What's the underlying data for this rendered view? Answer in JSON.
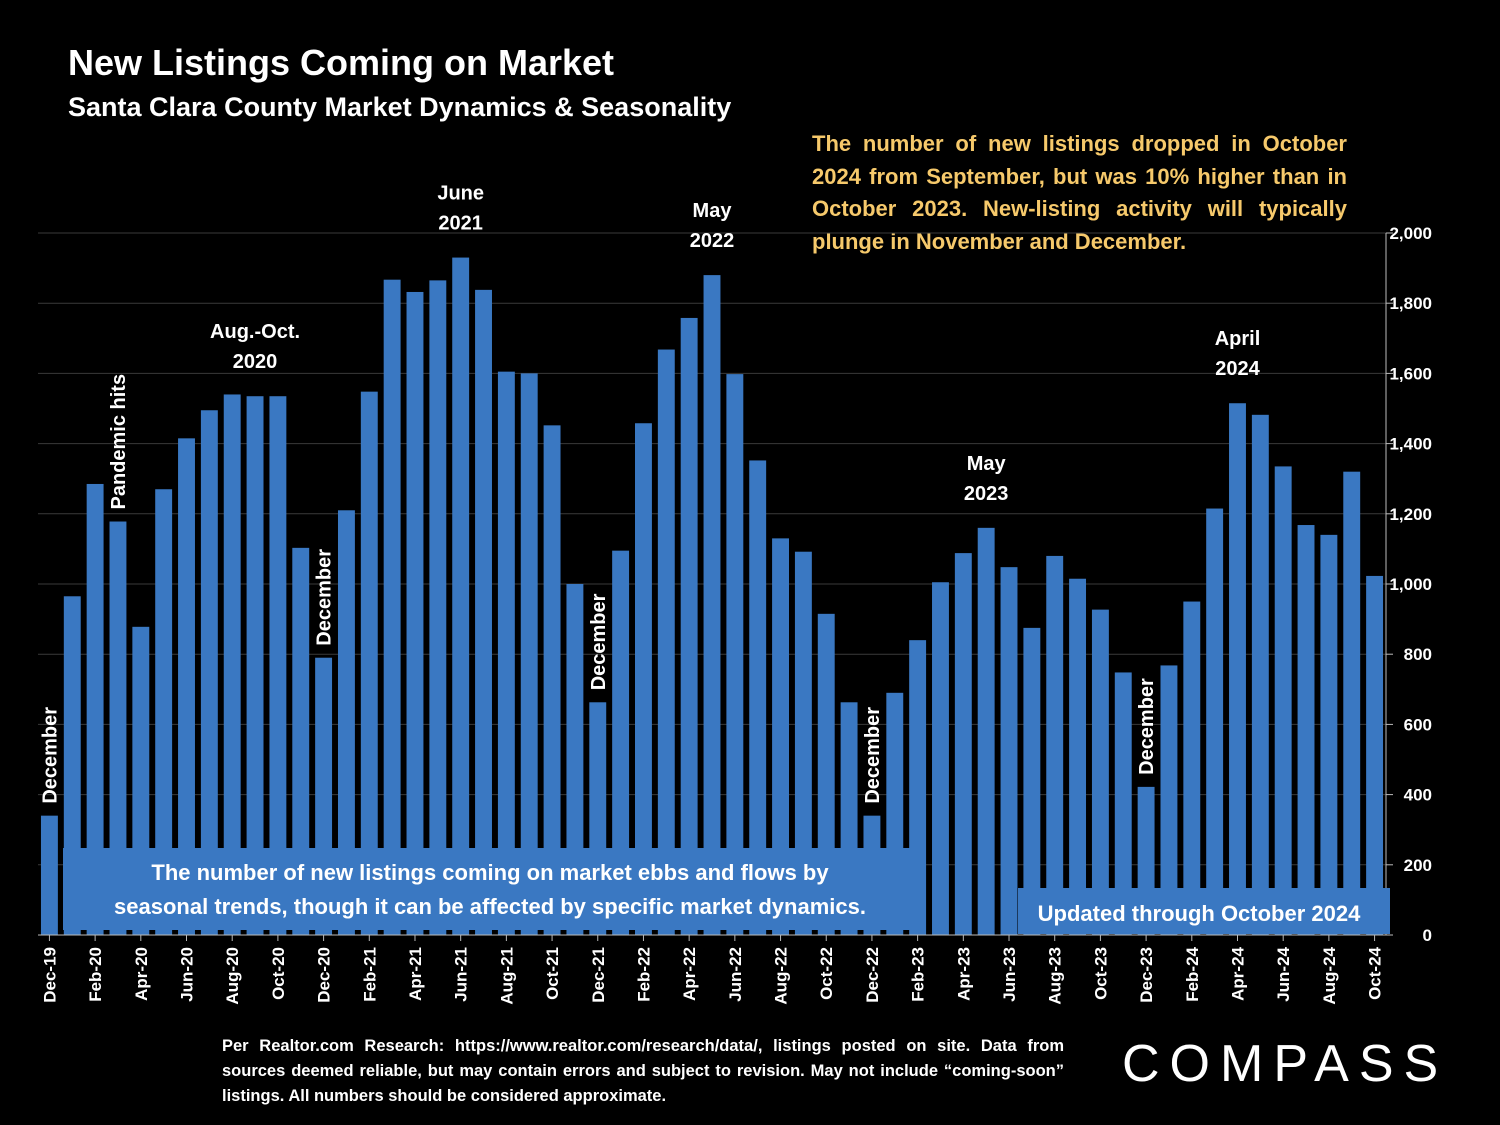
{
  "header": {
    "title": "New Listings Coming on Market",
    "subtitle": "Santa Clara County Market Dynamics & Seasonality"
  },
  "note": "The number of new listings dropped in October 2024 from September, but was 10% higher than in October 2023. New-listing activity will typically plunge in November and December.",
  "footer": "Per Realtor.com Research:   https://www.realtor.com/research/data/, listings posted on site. Data from sources deemed reliable, but may contain errors and subject to revision. May not include “coming-soon” listings. All numbers should be considered approximate.",
  "logo": "COMPASS",
  "colors": {
    "bar": "#3a78c2",
    "background": "#000000",
    "note": "#f6c96b",
    "grid": "#3a3a3a"
  },
  "chart_data": {
    "type": "bar",
    "title": "New Listings Coming on Market",
    "subtitle": "Santa Clara County Market Dynamics & Seasonality",
    "ylim": [
      0,
      2000
    ],
    "yticks": [
      0,
      200,
      400,
      600,
      800,
      1000,
      1200,
      1400,
      1600,
      1800,
      2000
    ],
    "grid": true,
    "categories": [
      "Dec-19",
      "Jan-20",
      "Feb-20",
      "Mar-20",
      "Apr-20",
      "May-20",
      "Jun-20",
      "Jul-20",
      "Aug-20",
      "Sep-20",
      "Oct-20",
      "Nov-20",
      "Dec-20",
      "Jan-21",
      "Feb-21",
      "Mar-21",
      "Apr-21",
      "May-21",
      "Jun-21",
      "Jul-21",
      "Aug-21",
      "Sep-21",
      "Oct-21",
      "Nov-21",
      "Dec-21",
      "Jan-22",
      "Feb-22",
      "Mar-22",
      "Apr-22",
      "May-22",
      "Jun-22",
      "Jul-22",
      "Aug-22",
      "Sep-22",
      "Oct-22",
      "Nov-22",
      "Dec-22",
      "Jan-23",
      "Feb-23",
      "Mar-23",
      "Apr-23",
      "May-23",
      "Jun-23",
      "Jul-23",
      "Aug-23",
      "Sep-23",
      "Oct-23",
      "Nov-23",
      "Dec-23",
      "Jan-24",
      "Feb-24",
      "Mar-24",
      "Apr-24",
      "May-24",
      "Jun-24",
      "Jul-24",
      "Aug-24",
      "Sep-24",
      "Oct-24"
    ],
    "xtick_labels": [
      "Dec-19",
      "",
      "Feb-20",
      "",
      "Apr-20",
      "",
      "Jun-20",
      "",
      "Aug-20",
      "",
      "Oct-20",
      "",
      "Dec-20",
      "",
      "Feb-21",
      "",
      "Apr-21",
      "",
      "Jun-21",
      "",
      "Aug-21",
      "",
      "Oct-21",
      "",
      "Dec-21",
      "",
      "Feb-22",
      "",
      "Apr-22",
      "",
      "Jun-22",
      "",
      "Aug-22",
      "",
      "Oct-22",
      "",
      "Dec-22",
      "",
      "Feb-23",
      "",
      "Apr-23",
      "",
      "Jun-23",
      "",
      "Aug-23",
      "",
      "Oct-23",
      "",
      "Dec-23",
      "",
      "Feb-24",
      "",
      "Apr-24",
      "",
      "Jun-24",
      "",
      "Aug-24",
      "",
      "Oct-24"
    ],
    "values": [
      340,
      965,
      1285,
      1178,
      878,
      1270,
      1415,
      1495,
      1540,
      1535,
      1535,
      1103,
      790,
      1210,
      1548,
      1867,
      1832,
      1865,
      1930,
      1838,
      1605,
      1600,
      1452,
      1000,
      663,
      1095,
      1458,
      1668,
      1758,
      1880,
      1598,
      1352,
      1130,
      1092,
      915,
      663,
      340,
      690,
      840,
      1005,
      1088,
      1160,
      1048,
      875,
      1080,
      1015,
      927,
      748,
      422,
      768,
      950,
      1215,
      1515,
      1482,
      1335,
      1168,
      1140,
      1320,
      1023
    ],
    "annotations": [
      {
        "label": "December",
        "index": 0,
        "vertical": true
      },
      {
        "label": "Pandemic hits",
        "index": 3,
        "vertical": true
      },
      {
        "label": [
          "Aug.-Oct.",
          "2020"
        ],
        "index": 9
      },
      {
        "label": "December",
        "index": 12,
        "vertical": true
      },
      {
        "label": [
          "June",
          "2021"
        ],
        "index": 18
      },
      {
        "label": "December",
        "index": 24,
        "vertical": true
      },
      {
        "label": [
          "May",
          "2022"
        ],
        "index": 29
      },
      {
        "label": "December",
        "index": 36,
        "vertical": true
      },
      {
        "label": [
          "May",
          "2023"
        ],
        "index": 41
      },
      {
        "label": "December",
        "index": 48,
        "vertical": true
      },
      {
        "label": [
          "April",
          "2024"
        ],
        "index": 52
      }
    ],
    "callout_boxes": [
      {
        "lines": [
          "The number of new listings coming on market ebbs and flows by",
          "seasonal trends, though it can be affected by specific market dynamics."
        ]
      },
      {
        "lines": [
          "Updated through October 2024"
        ]
      }
    ]
  }
}
